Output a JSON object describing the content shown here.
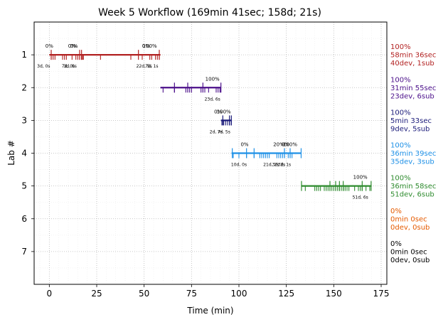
{
  "chart_data": {
    "type": "timeline",
    "title": "Week 5 Workflow (169min 41sec; 158d; 21s)",
    "xlabel": "Time (min)",
    "ylabel": "Lab #",
    "xlim": [
      -8,
      178
    ],
    "ylim": [
      8,
      0
    ],
    "x_ticks": [
      0,
      25,
      50,
      75,
      100,
      125,
      150,
      175
    ],
    "y_ticks": [
      1,
      2,
      3,
      4,
      5,
      6,
      7
    ],
    "grid": "dotted",
    "labs": [
      {
        "lab": 1,
        "color": "#b22222",
        "start": 0,
        "end": 58.6,
        "ticks": [
          1,
          2,
          3,
          7,
          8,
          9,
          12,
          14,
          15,
          16,
          17,
          17.5,
          18,
          27,
          43,
          49,
          53,
          54,
          56,
          57,
          58
        ],
        "tall_ticks": [
          1,
          16,
          17,
          47,
          58
        ],
        "pct_labels": [
          {
            "x": 0,
            "text": "0%"
          },
          {
            "x": 12,
            "text": "0%"
          },
          {
            "x": 13,
            "text": "0%"
          },
          {
            "x": 51,
            "text": "0%"
          },
          {
            "x": 53,
            "text": "100%"
          }
        ],
        "sub_labels": [
          {
            "x": -3,
            "text": "3d, 0s"
          },
          {
            "x": 10,
            "text": "7d, 0s"
          },
          {
            "x": 11,
            "text": "3d, 0s"
          },
          {
            "x": 50,
            "text": "22d, 5s"
          },
          {
            "x": 54,
            "text": "7d, 1s"
          }
        ],
        "side": [
          "100%",
          "58min 36sec",
          "40dev, 1sub"
        ]
      },
      {
        "lab": 2,
        "color": "#4b0f8a",
        "start": 58.6,
        "end": 90.5,
        "ticks": [
          60,
          66,
          72,
          74,
          75,
          80,
          82,
          84,
          88,
          89,
          90
        ],
        "tall_ticks": [
          66,
          73,
          81,
          90.5
        ],
        "pct_labels": [
          {
            "x": 86,
            "text": "100%"
          }
        ],
        "sub_labels": [
          {
            "x": 86,
            "text": "23d, 6s"
          }
        ],
        "side": [
          "100%",
          "31min 55sec",
          "23dev, 6sub"
        ]
      },
      {
        "lab": 3,
        "color": "#1b1b7a",
        "start": 90.5,
        "end": 96.1,
        "ticks": [
          91,
          92,
          93,
          94,
          95,
          96
        ],
        "tall_ticks": [
          91.5,
          95,
          96
        ],
        "pct_labels": [
          {
            "x": 89,
            "text": "0%"
          },
          {
            "x": 92,
            "text": "100%"
          }
        ],
        "sub_labels": [
          {
            "x": 88,
            "text": "2d, 7s"
          },
          {
            "x": 92,
            "text": "7d, 5s"
          }
        ],
        "side": [
          "100%",
          "5min 33sec",
          "9dev, 5sub"
        ]
      },
      {
        "lab": 4,
        "color": "#1e90e6",
        "start": 96.1,
        "end": 132.8,
        "ticks": [
          97,
          100,
          104,
          108,
          111,
          112,
          113,
          114,
          115,
          116,
          120,
          121,
          122,
          123,
          124,
          126,
          127,
          128
        ],
        "tall_ticks": [
          96.5,
          104,
          108,
          124,
          127,
          132.8
        ],
        "pct_labels": [
          {
            "x": 103,
            "text": "0%"
          },
          {
            "x": 121,
            "text": "20%"
          },
          {
            "x": 124.5,
            "text": "0%"
          },
          {
            "x": 127,
            "text": "100%"
          }
        ],
        "sub_labels": [
          {
            "x": 100,
            "text": "10d, 0s"
          },
          {
            "x": 117,
            "text": "21d, 2s"
          },
          {
            "x": 121,
            "text": "3d, 2s"
          },
          {
            "x": 124,
            "text": "3d, 1s"
          }
        ],
        "side": [
          "100%",
          "36min 39sec",
          "35dev, 3sub"
        ]
      },
      {
        "lab": 5,
        "color": "#2e8b2e",
        "start": 132.8,
        "end": 169.7,
        "ticks": [
          135,
          140,
          141,
          142,
          143,
          145,
          146,
          147,
          148,
          149,
          150,
          151,
          152,
          153,
          154,
          155,
          156,
          157,
          158,
          161,
          163,
          164,
          165,
          167,
          169
        ],
        "tall_ticks": [
          133,
          148,
          151,
          153,
          155,
          165,
          169.7
        ],
        "pct_labels": [
          {
            "x": 164,
            "text": "100%"
          }
        ],
        "sub_labels": [
          {
            "x": 164,
            "text": "51d, 6s"
          }
        ],
        "side": [
          "100%",
          "36min 58sec",
          "51dev, 6sub"
        ]
      },
      {
        "lab": 6,
        "color": "#e55a00",
        "start": null,
        "end": null,
        "ticks": [],
        "tall_ticks": [],
        "pct_labels": [],
        "sub_labels": [],
        "side": [
          "0%",
          "0min 0sec",
          "0dev, 0sub"
        ]
      },
      {
        "lab": 7,
        "color": "#000000",
        "start": null,
        "end": null,
        "ticks": [],
        "tall_ticks": [],
        "pct_labels": [],
        "sub_labels": [],
        "side": [
          "0%",
          "0min 0sec",
          "0dev, 0sub"
        ]
      }
    ]
  }
}
